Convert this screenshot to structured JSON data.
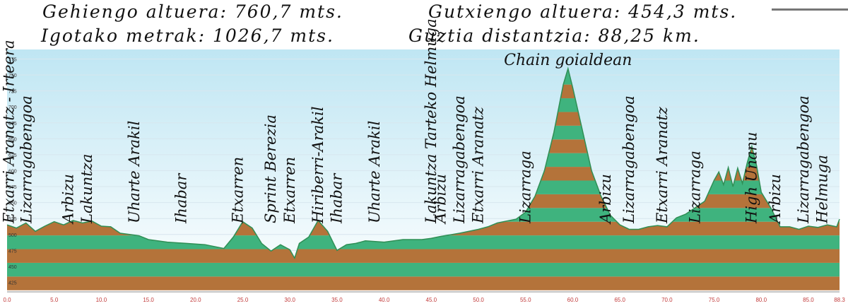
{
  "header": {
    "line1_left": "Gehiengo altuera: 760,7 mts.",
    "line1_right": "Gutxiengo altuera: 454,3 mts.",
    "line2_left": "Igotako metrak: 1026,7 mts.",
    "line2_right": "Guztia distantzia: 88,25 km."
  },
  "chart_data": {
    "type": "area",
    "xlim": [
      0,
      88.3
    ],
    "ylim": [
      410,
      790
    ],
    "x_ticks": [
      "0.0",
      "5.0",
      "10.0",
      "15.0",
      "20.0",
      "25.0",
      "30.0",
      "35.0",
      "40.0",
      "45.0",
      "50.0",
      "55.0",
      "60.0",
      "65.0",
      "70.0",
      "75.0",
      "80.0",
      "85.0",
      "88.3"
    ],
    "y_ticks": [
      "775",
      "750",
      "725",
      "700",
      "675",
      "650",
      "625",
      "600",
      "575",
      "550",
      "525",
      "500",
      "475",
      "450",
      "425"
    ],
    "colors": {
      "sky_top": "#bfe6f3",
      "sky_bottom": "#ffffff",
      "band_brown": "#b4733a",
      "band_green": "#3fb37e",
      "line": "#2f8f55"
    },
    "series": [
      {
        "x": [
          0,
          1,
          2,
          3,
          4,
          5,
          6,
          7,
          8,
          9,
          10,
          11,
          12,
          13,
          14,
          15,
          17,
          19,
          21,
          23,
          24,
          25,
          26,
          27,
          28,
          29,
          30,
          30.5,
          31,
          32,
          33,
          34,
          35,
          36,
          37,
          38,
          40,
          42,
          44,
          45,
          46,
          48,
          50,
          51,
          52,
          54,
          55,
          56,
          57,
          58,
          59,
          59.5,
          60,
          61,
          62,
          63,
          64,
          65,
          66,
          67,
          68,
          69,
          70,
          71,
          72,
          73,
          74,
          75,
          75.5,
          76,
          76.5,
          77,
          77.5,
          78,
          78.5,
          79,
          79.5,
          80,
          81,
          82,
          83,
          84,
          85,
          86,
          87,
          88,
          88.3
        ],
        "y": [
          515,
          510,
          518,
          505,
          513,
          520,
          515,
          522,
          518,
          521,
          513,
          512,
          502,
          500,
          498,
          492,
          488,
          486,
          484,
          478,
          496,
          520,
          510,
          486,
          474,
          484,
          476,
          463,
          486,
          496,
          522,
          505,
          475,
          484,
          486,
          490,
          488,
          492,
          492,
          494,
          497,
          502,
          508,
          512,
          518,
          524,
          535,
          560,
          600,
          660,
          735,
          760,
          730,
          665,
          600,
          560,
          530,
          515,
          508,
          508,
          512,
          514,
          512,
          526,
          532,
          542,
          552,
          585,
          598,
          578,
          605,
          575,
          604,
          580,
          612,
          638,
          608,
          566,
          542,
          512,
          512,
          508,
          513,
          511,
          515,
          512,
          524
        ]
      }
    ],
    "annotations": [
      {
        "x": 0.7,
        "text": "Etxarri Aranatz - Irteera"
      },
      {
        "x": 2.6,
        "text": "Lizarragabengoa"
      },
      {
        "x": 7.0,
        "text": "Arbizu"
      },
      {
        "x": 9.0,
        "text": "Lakuntza"
      },
      {
        "x": 14.0,
        "text": "Uharte Arakil"
      },
      {
        "x": 19.0,
        "text": "Ihabar"
      },
      {
        "x": 25.0,
        "text": "Etxarren"
      },
      {
        "x": 28.5,
        "text": "Sprint Berezia"
      },
      {
        "x": 30.5,
        "text": "Etxarren"
      },
      {
        "x": 33.5,
        "text": "Hiriberri-Arakil"
      },
      {
        "x": 35.5,
        "text": "Ihabar"
      },
      {
        "x": 39.5,
        "text": "Uharte Arakil"
      },
      {
        "x": 45.5,
        "text": "Lakuntza Tarteko Helmuga"
      },
      {
        "x": 46.5,
        "text": "Arbizu"
      },
      {
        "x": 48.5,
        "text": "Lizarragabengoa"
      },
      {
        "x": 50.5,
        "text": "Etxarri Aranatz"
      },
      {
        "x": 55.5,
        "text": "Lizarraga"
      },
      {
        "x": 64.0,
        "text": "Arbizu"
      },
      {
        "x": 66.5,
        "text": "Lizarragabengoa"
      },
      {
        "x": 70.0,
        "text": "Etxarri Aranatz"
      },
      {
        "x": 73.5,
        "text": "Lizarraga"
      },
      {
        "x": 79.5,
        "text": "High Unanu"
      },
      {
        "x": 82.0,
        "text": "Arbizu"
      },
      {
        "x": 85.0,
        "text": "Lizarragabengoa"
      },
      {
        "x": 87.0,
        "text": "Helmuga"
      }
    ],
    "summit_label": {
      "x": 59.5,
      "text": "Chain goialdean"
    }
  }
}
